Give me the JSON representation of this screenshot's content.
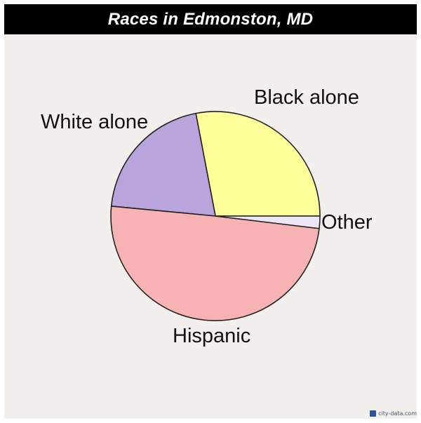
{
  "title": "Races in Edmonston, MD",
  "watermark": "city-data.com",
  "chart_data": {
    "type": "pie",
    "title": "Races in Edmonston, MD",
    "start_angle_deg": 0,
    "direction": "counterclockwise",
    "slices": [
      {
        "label": "Black alone",
        "value": 28.0,
        "color": "#ffff99"
      },
      {
        "label": "White alone",
        "value": 20.5,
        "color": "#b9a5dc"
      },
      {
        "label": "Hispanic",
        "value": 49.6,
        "color": "#f7b3b3"
      },
      {
        "label": "Other",
        "value": 1.9,
        "color": "#ece6f6"
      }
    ]
  }
}
